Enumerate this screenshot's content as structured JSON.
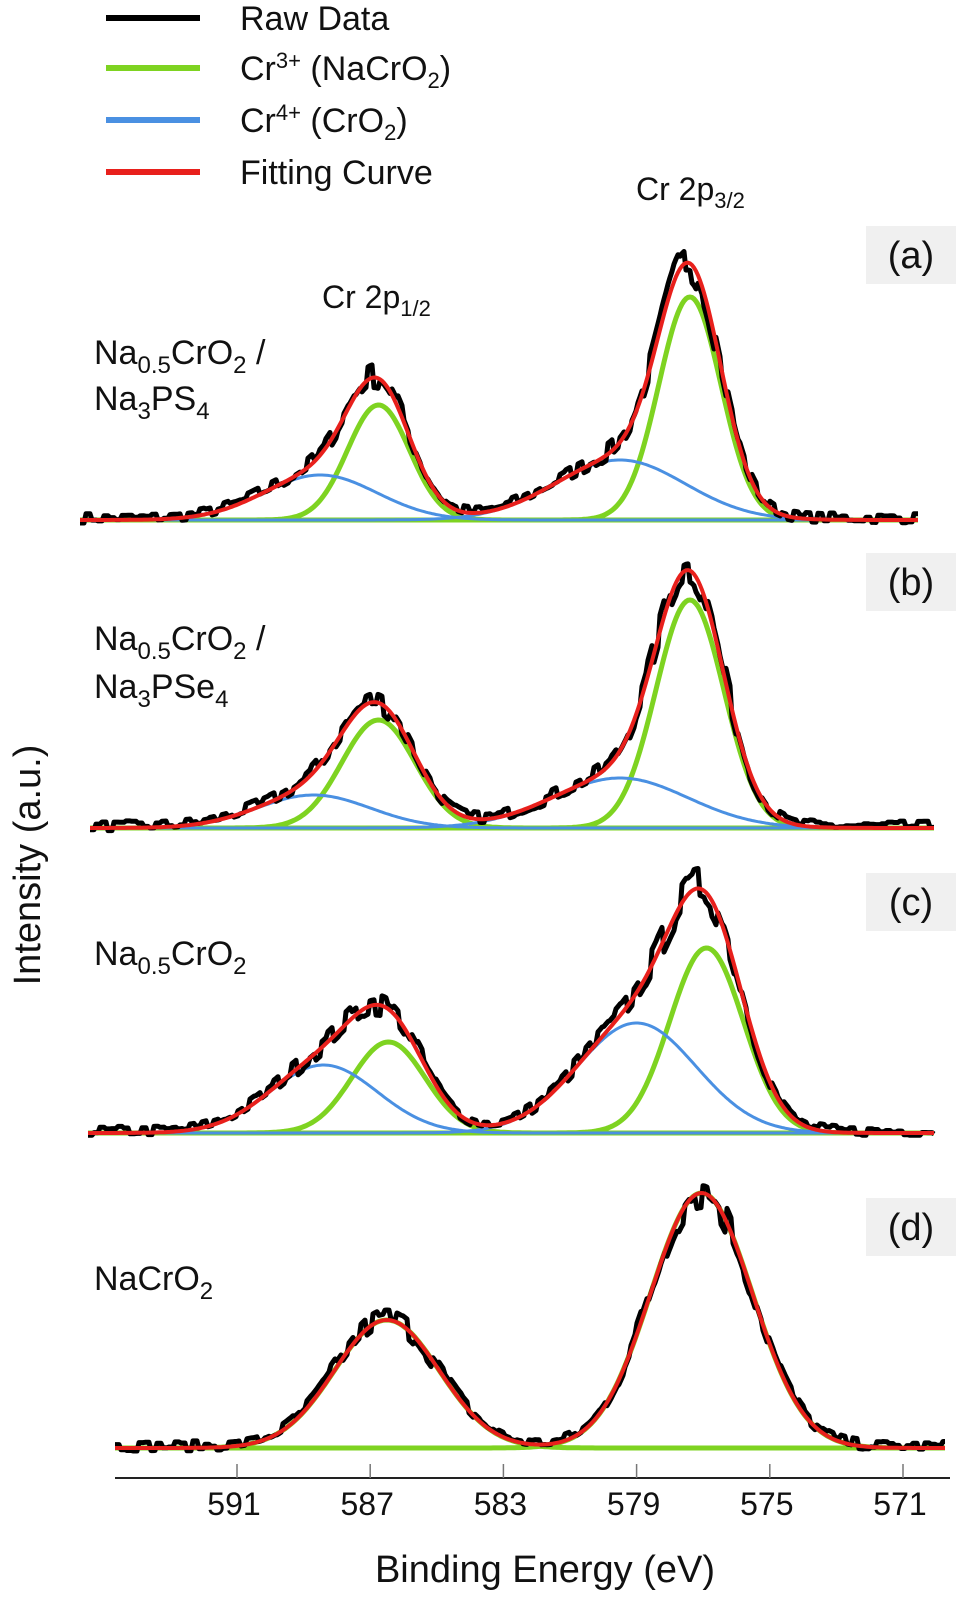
{
  "chart_data": {
    "type": "line",
    "xlabel": "Binding Energy (eV)",
    "ylabel": "Intensity (a.u.)",
    "xlim": [
      594.6,
      569.6
    ],
    "x_reversed": true,
    "x_ticks": [
      591,
      587,
      583,
      579,
      575,
      571
    ],
    "y_ticks": [],
    "grid": false,
    "legend": {
      "placement": "top-left",
      "entries": [
        {
          "label": "Raw Data",
          "color": "#000000"
        },
        {
          "label": "Cr",
          "sup": "3+",
          "rest": " (NaCrO",
          "sub": "2",
          "tail": ")",
          "color": "#7ed321"
        },
        {
          "label": "Cr",
          "sup": "4+",
          "rest": " (CrO",
          "sub": "2",
          "tail": ")",
          "color": "#4a90e2"
        },
        {
          "label": "Fitting Curve",
          "color": "#e8201c"
        }
      ]
    },
    "annotations": {
      "p32": {
        "main": "Cr 2p",
        "sub": "3/2"
      },
      "p12": {
        "main": "Cr 2p",
        "sub": "1/2"
      }
    },
    "panels": [
      {
        "tag": "(a)",
        "sample": [
          [
            "Na",
            "0.5",
            "CrO",
            "2",
            " /"
          ],
          [
            "Na",
            "3",
            "PS",
            "4",
            ""
          ]
        ],
        "components": [
          {
            "series": "Cr3+",
            "center": 577.4,
            "fwhm": 2.2,
            "height": 223
          },
          {
            "series": "Cr3+",
            "center": 586.75,
            "fwhm": 2.2,
            "height": 115
          },
          {
            "series": "Cr4+",
            "center": 579.5,
            "fwhm": 4.6,
            "height": 60
          },
          {
            "series": "Cr4+",
            "center": 588.5,
            "fwhm": 4.0,
            "height": 45
          }
        ]
      },
      {
        "tag": "(b)",
        "sample": [
          [
            "Na",
            "0.5",
            "CrO",
            "2",
            " /"
          ],
          [
            "Na",
            "3",
            "PSe",
            "4",
            ""
          ]
        ],
        "components": [
          {
            "series": "Cr3+",
            "center": 577.4,
            "fwhm": 2.4,
            "height": 228
          },
          {
            "series": "Cr3+",
            "center": 586.75,
            "fwhm": 2.6,
            "height": 108
          },
          {
            "series": "Cr4+",
            "center": 579.5,
            "fwhm": 4.8,
            "height": 50
          },
          {
            "series": "Cr4+",
            "center": 588.7,
            "fwhm": 4.0,
            "height": 33
          }
        ]
      },
      {
        "tag": "(c)",
        "sample": [
          [
            "Na",
            "0.5",
            "CrO",
            "2",
            ""
          ]
        ],
        "components": [
          {
            "series": "Cr3+",
            "center": 576.9,
            "fwhm": 2.6,
            "height": 185
          },
          {
            "series": "Cr3+",
            "center": 586.45,
            "fwhm": 2.6,
            "height": 91
          },
          {
            "series": "Cr4+",
            "center": 579.0,
            "fwhm": 4.2,
            "height": 110
          },
          {
            "series": "Cr4+",
            "center": 588.4,
            "fwhm": 3.8,
            "height": 68
          }
        ]
      },
      {
        "tag": "(d)",
        "sample": [
          [
            "NaCrO",
            "2",
            "",
            "",
            ""
          ]
        ],
        "components": [
          {
            "series": "Cr3+",
            "center": 577.05,
            "fwhm": 3.6,
            "height": 255
          },
          {
            "series": "Cr3+",
            "center": 586.5,
            "fwhm": 3.7,
            "height": 128
          }
        ]
      }
    ]
  }
}
